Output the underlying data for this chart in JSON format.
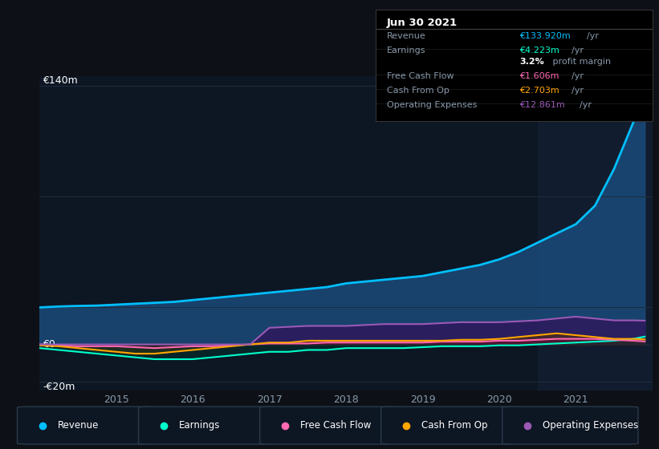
{
  "bg_color": "#0d1117",
  "chart_bg": "#0d1623",
  "highlight_bg": "#111d2e",
  "grid_color": "#1e2d3d",
  "years": [
    2014.0,
    2014.25,
    2014.5,
    2014.75,
    2015.0,
    2015.25,
    2015.5,
    2015.75,
    2016.0,
    2016.25,
    2016.5,
    2016.75,
    2017.0,
    2017.25,
    2017.5,
    2017.75,
    2018.0,
    2018.25,
    2018.5,
    2018.75,
    2019.0,
    2019.25,
    2019.5,
    2019.75,
    2020.0,
    2020.25,
    2020.5,
    2020.75,
    2021.0,
    2021.25,
    2021.5,
    2021.75,
    2021.9
  ],
  "revenue": [
    20,
    20.5,
    20.8,
    21,
    21.5,
    22,
    22.5,
    23,
    24,
    25,
    26,
    27,
    28,
    29,
    30,
    31,
    33,
    34,
    35,
    36,
    37,
    39,
    41,
    43,
    46,
    50,
    55,
    60,
    65,
    75,
    95,
    120,
    133.92
  ],
  "earnings": [
    -2,
    -3,
    -4,
    -5,
    -6,
    -7,
    -8,
    -8,
    -8,
    -7,
    -6,
    -5,
    -4,
    -4,
    -3,
    -3,
    -2,
    -2,
    -2,
    -2,
    -1.5,
    -1,
    -1,
    -1,
    -0.5,
    -0.5,
    0,
    0.5,
    1,
    1.5,
    2,
    3,
    4.223
  ],
  "free_cash_flow": [
    0,
    -0.5,
    -1,
    -1,
    -1,
    -1.5,
    -2,
    -1.5,
    -1,
    -1,
    -0.5,
    0,
    0.5,
    0.5,
    0.5,
    1,
    1,
    1,
    1,
    1,
    1,
    1.5,
    1.5,
    1.5,
    2,
    2,
    2.5,
    3,
    3,
    3,
    2.5,
    2,
    1.606
  ],
  "cash_from_op": [
    -0.5,
    -1,
    -2,
    -3,
    -4,
    -5,
    -5,
    -4,
    -3,
    -2,
    -1,
    0,
    1,
    1,
    2,
    2,
    2,
    2,
    2,
    2,
    2,
    2,
    2.5,
    2.5,
    3,
    4,
    5,
    6,
    5,
    4,
    3,
    3,
    2.703
  ],
  "operating_expenses": [
    0,
    0,
    0,
    0,
    0,
    0,
    0,
    0,
    0,
    0,
    0,
    0,
    9,
    9.5,
    10,
    10,
    10,
    10.5,
    11,
    11,
    11,
    11.5,
    12,
    12,
    12,
    12.5,
    13,
    14,
    15,
    14,
    13,
    13,
    12.861
  ],
  "revenue_color": "#00bfff",
  "earnings_color": "#00ffcc",
  "fcf_color": "#ff69b4",
  "cashop_color": "#ffa500",
  "opex_color": "#9b59b6",
  "revenue_fill": "#1a4a7a",
  "opex_fill": "#2d1b5e",
  "highlight_start": 2020.5,
  "ylim_min": -25,
  "ylim_max": 145,
  "xticks": [
    2015,
    2016,
    2017,
    2018,
    2019,
    2020,
    2021
  ],
  "xmin": 2014.0,
  "xmax": 2022.0,
  "panel_title": "Jun 30 2021",
  "panel_rows": [
    {
      "label": "Revenue",
      "value": "€133.920m",
      "unit": "/yr",
      "color": "#00bfff",
      "bold_value": false
    },
    {
      "label": "Earnings",
      "value": "€4.223m",
      "unit": "/yr",
      "color": "#00ffcc",
      "bold_value": false
    },
    {
      "label": "",
      "value": "3.2%",
      "unit": " profit margin",
      "color": "#ffffff",
      "bold_value": true
    },
    {
      "label": "Free Cash Flow",
      "value": "€1.606m",
      "unit": "/yr",
      "color": "#ff69b4",
      "bold_value": false
    },
    {
      "label": "Cash From Op",
      "value": "€2.703m",
      "unit": "/yr",
      "color": "#ffa500",
      "bold_value": false
    },
    {
      "label": "Operating Expenses",
      "value": "€12.861m",
      "unit": "/yr",
      "color": "#9b59b6",
      "bold_value": false
    }
  ],
  "legend_items": [
    {
      "label": "Revenue",
      "color": "#00bfff"
    },
    {
      "label": "Earnings",
      "color": "#00ffcc"
    },
    {
      "label": "Free Cash Flow",
      "color": "#ff69b4"
    },
    {
      "label": "Cash From Op",
      "color": "#ffa500"
    },
    {
      "label": "Operating Expenses",
      "color": "#9b59b6"
    }
  ]
}
